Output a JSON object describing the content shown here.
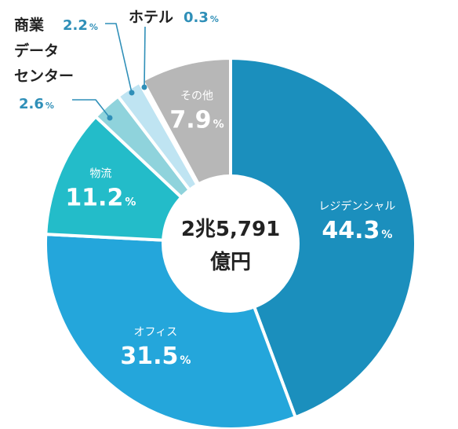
{
  "chart_data": {
    "type": "pie",
    "style": "donut",
    "center_label": [
      "2兆5,791",
      "億円"
    ],
    "categories": [
      "レジデンシャル",
      "オフィス",
      "物流",
      "データセンター",
      "商業",
      "ホテル",
      "その他"
    ],
    "values": [
      44.3,
      31.5,
      11.2,
      2.6,
      2.2,
      0.3,
      7.9
    ],
    "value_unit": "%",
    "colors": [
      "#1b8fbd",
      "#24a6db",
      "#23bcc9",
      "#8fd3dc",
      "#bfe4f2",
      "#d8eef8",
      "#b7b7b7"
    ],
    "labels": [
      {
        "name": "レジデンシャル",
        "value": "44.3",
        "unit": "%",
        "placement": "inside"
      },
      {
        "name": "オフィス",
        "value": "31.5",
        "unit": "%",
        "placement": "inside"
      },
      {
        "name": "物流",
        "value": "11.2",
        "unit": "%",
        "placement": "inside"
      },
      {
        "name": "データセンター",
        "name_lines": [
          "データ",
          "センター"
        ],
        "value": "2.6",
        "unit": "%",
        "placement": "outside"
      },
      {
        "name": "商業",
        "value": "2.2",
        "unit": "%",
        "placement": "outside"
      },
      {
        "name": "ホテル",
        "value": "0.3",
        "unit": "%",
        "placement": "outside"
      },
      {
        "name": "その他",
        "value": "7.9",
        "unit": "%",
        "placement": "inside"
      }
    ]
  },
  "colors": {
    "callout_text": "#2f8fb8",
    "leader_line": "#2f8fb8",
    "label_dark": "#222222",
    "center_fill": "#ffffff"
  }
}
